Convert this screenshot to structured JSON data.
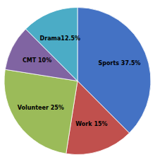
{
  "chart_data": {
    "type": "pie",
    "categories": [
      "Sports 37.5%",
      "Work 15%",
      "Volunteer 25%",
      "CMT 10%",
      "Drama12.5%"
    ],
    "values": [
      37.5,
      15,
      25,
      10,
      12.5
    ],
    "colors": [
      "#4472C4",
      "#C0504D",
      "#9BBB59",
      "#8064A2",
      "#4BACC6"
    ]
  }
}
